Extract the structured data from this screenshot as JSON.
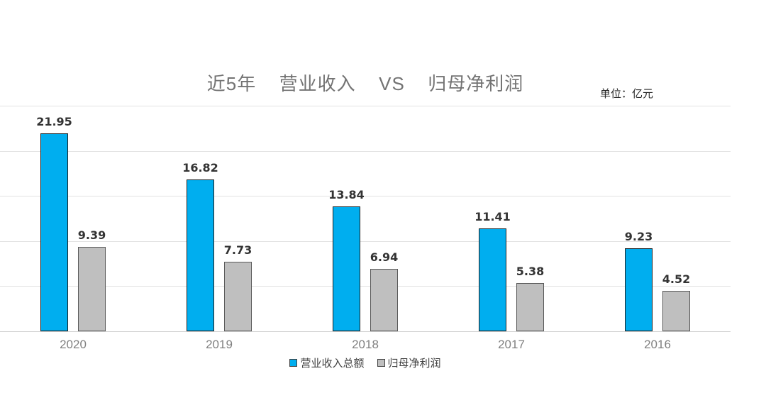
{
  "title": "近5年  营业收入  VS  归母净利润",
  "unit_label": "单位：亿元",
  "chart_data": {
    "type": "bar",
    "title": "近5年 营业收入 VS 归母净利润",
    "unit": "亿元",
    "categories": [
      "2020",
      "2019",
      "2018",
      "2017",
      "2016"
    ],
    "series": [
      {
        "name": "营业收入总额",
        "color": "#00AEEF",
        "border_color": "#1f1f1f",
        "values": [
          21.95,
          16.82,
          13.84,
          11.41,
          9.23
        ]
      },
      {
        "name": "归母净利润",
        "color": "#BFBFBF",
        "border_color": "#595959",
        "values": [
          9.39,
          7.73,
          6.94,
          5.38,
          4.52
        ]
      }
    ],
    "xlabel": "",
    "ylabel": "",
    "ylim": [
      0,
      25
    ],
    "grid_step": 5,
    "grid": true,
    "y_tick_labels_visible": false,
    "legend_position": "bottom",
    "value_labels": true
  },
  "colors": {
    "background": "#ffffff",
    "gridline": "#e2e2e2",
    "axis_line": "#d0d0d0",
    "title_text": "#737373",
    "unit_text": "#262626",
    "value_label_text": "#333333",
    "category_label_text": "#808080",
    "legend_text": "#404040"
  }
}
